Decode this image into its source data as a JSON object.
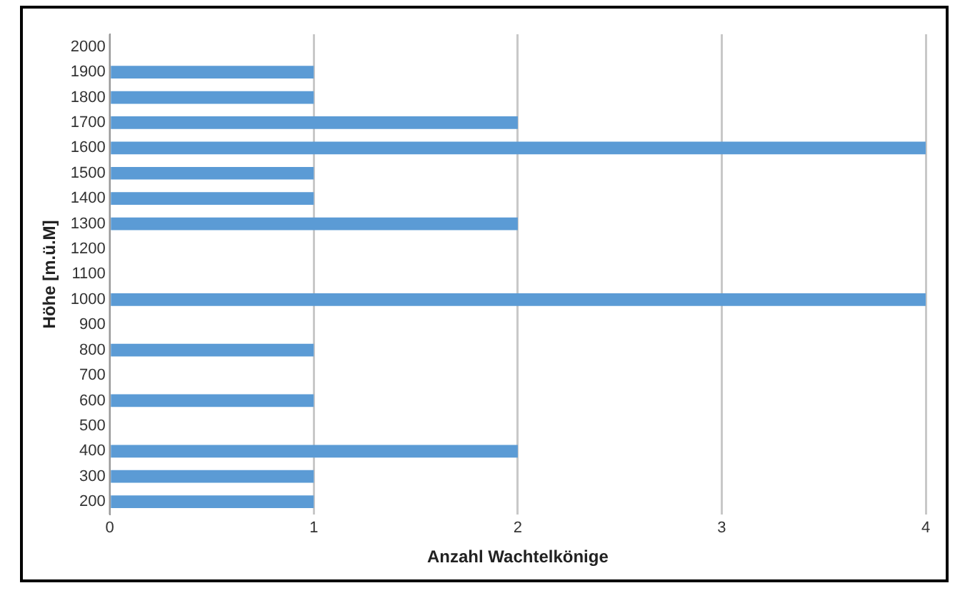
{
  "chart_data": {
    "type": "bar",
    "orientation": "horizontal",
    "xlabel": "Anzahl Wachtelkönige",
    "ylabel": "Höhe [m.ü.M]",
    "categories": [
      "2000",
      "1900",
      "1800",
      "1700",
      "1600",
      "1500",
      "1400",
      "1300",
      "1200",
      "1100",
      "1000",
      "900",
      "800",
      "700",
      "600",
      "500",
      "400",
      "300",
      "200"
    ],
    "values": [
      0,
      1,
      1,
      2,
      4,
      1,
      1,
      2,
      0,
      0,
      4,
      0,
      1,
      0,
      1,
      0,
      2,
      1,
      1
    ],
    "color": "#5b9bd5",
    "xlim": [
      0,
      4
    ],
    "xticks": [
      0,
      1,
      2,
      3,
      4
    ],
    "grid": "x",
    "legend": false
  }
}
